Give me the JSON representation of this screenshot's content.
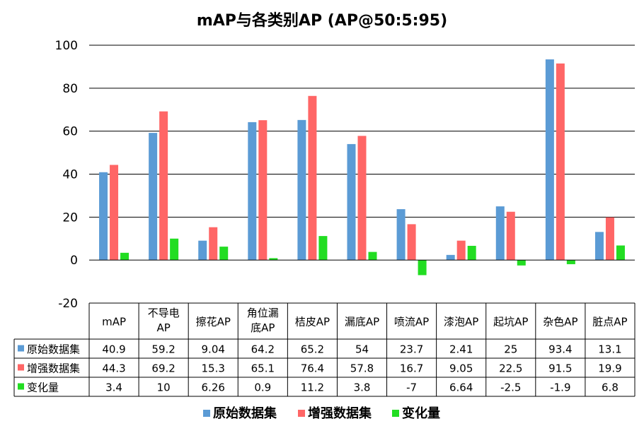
{
  "chart_data": {
    "type": "bar",
    "title": "mAP与各类别AP (AP@50:5:95)",
    "categories": [
      "mAP",
      "不导电AP",
      "擦花AP",
      "角位漏底AP",
      "桔皮AP",
      "漏底AP",
      "喷流AP",
      "漆泡AP",
      "起坑AP",
      "杂色AP",
      "脏点AP"
    ],
    "category_labels": [
      [
        "mAP"
      ],
      [
        "不导电",
        "AP"
      ],
      [
        "擦花AP"
      ],
      [
        "角位漏",
        "底AP"
      ],
      [
        "桔皮AP"
      ],
      [
        "漏底AP"
      ],
      [
        "喷流AP"
      ],
      [
        "漆泡AP"
      ],
      [
        "起坑AP"
      ],
      [
        "杂色AP"
      ],
      [
        "脏点AP"
      ]
    ],
    "series": [
      {
        "name": "原始数据集",
        "color": "#5b9bd5",
        "values": [
          40.9,
          59.2,
          9.04,
          64.2,
          65.2,
          54,
          23.7,
          2.41,
          25,
          93.4,
          13.1
        ],
        "labels": [
          "40.9",
          "59.2",
          "9.04",
          "64.2",
          "65.2",
          "54",
          "23.7",
          "2.41",
          "25",
          "93.4",
          "13.1"
        ]
      },
      {
        "name": "增强数据集",
        "color": "#ff6666",
        "values": [
          44.3,
          69.2,
          15.3,
          65.1,
          76.4,
          57.8,
          16.7,
          9.05,
          22.5,
          91.5,
          19.9
        ],
        "labels": [
          "44.3",
          "69.2",
          "15.3",
          "65.1",
          "76.4",
          "57.8",
          "16.7",
          "9.05",
          "22.5",
          "91.5",
          "19.9"
        ]
      },
      {
        "name": "变化量",
        "color": "#22dd22",
        "values": [
          3.4,
          10,
          6.26,
          0.9,
          11.2,
          3.8,
          -7,
          6.64,
          -2.5,
          -1.9,
          6.8
        ],
        "labels": [
          "3.4",
          "10",
          "6.26",
          "0.9",
          "11.2",
          "3.8",
          "-7",
          "6.64",
          "-2.5",
          "-1.9",
          "6.8"
        ]
      }
    ],
    "y_ticks": [
      "100",
      "80",
      "60",
      "40",
      "20",
      "0",
      "-20"
    ],
    "ylim": [
      -20,
      100
    ],
    "grid": true,
    "legend_position": "bottom",
    "data_table": true
  }
}
